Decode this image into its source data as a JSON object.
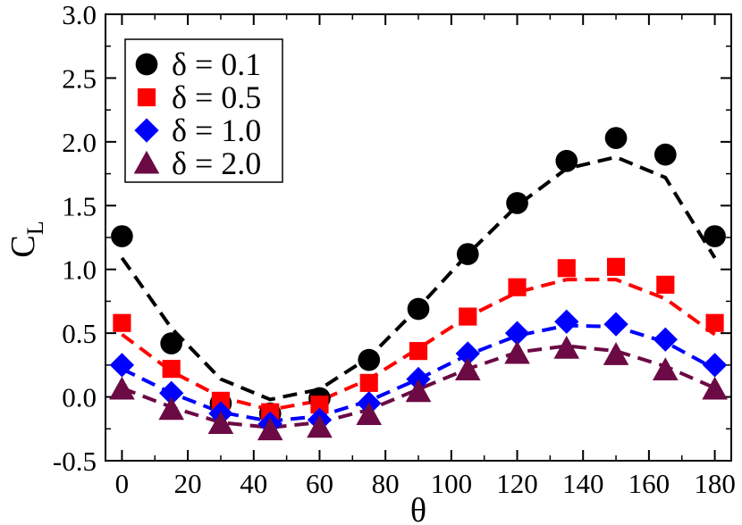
{
  "chart_data": {
    "type": "scatter",
    "xlabel": "θ",
    "ylabel_main": "C",
    "ylabel_sub": "L",
    "xlim": [
      -5,
      185
    ],
    "ylim": [
      -0.5,
      3.0
    ],
    "xticks": [
      0,
      20,
      40,
      60,
      80,
      100,
      120,
      140,
      160,
      180
    ],
    "yticks": [
      -0.5,
      0.0,
      0.5,
      1.0,
      1.5,
      2.0,
      2.5,
      3.0
    ],
    "xtick_labels": [
      "0",
      "20",
      "40",
      "60",
      "80",
      "100",
      "120",
      "140",
      "160",
      "180"
    ],
    "ytick_labels": [
      "-0.5",
      "0.0",
      "0.5",
      "1.0",
      "1.5",
      "2.0",
      "2.5",
      "3.0"
    ],
    "legend_position": "top-left",
    "x": [
      0,
      15,
      30,
      45,
      60,
      75,
      90,
      105,
      120,
      135,
      150,
      165,
      180
    ],
    "series": [
      {
        "name": "δ = 0.1",
        "color": "#000000",
        "marker": "circle",
        "values": [
          1.26,
          0.42,
          -0.05,
          -0.13,
          -0.01,
          0.29,
          0.69,
          1.12,
          1.52,
          1.85,
          2.03,
          1.9,
          1.26
        ],
        "fit": [
          1.09,
          0.54,
          0.14,
          -0.02,
          0.06,
          0.31,
          0.7,
          1.12,
          1.5,
          1.79,
          1.88,
          1.72,
          1.09
        ]
      },
      {
        "name": "δ = 0.5",
        "color": "#ff0000",
        "marker": "square",
        "values": [
          0.58,
          0.22,
          -0.03,
          -0.12,
          -0.06,
          0.11,
          0.36,
          0.63,
          0.86,
          1.01,
          1.02,
          0.88,
          0.58
        ],
        "fit": [
          0.49,
          0.2,
          0.0,
          -0.1,
          -0.03,
          0.14,
          0.38,
          0.63,
          0.82,
          0.92,
          0.92,
          0.77,
          0.49
        ]
      },
      {
        "name": "δ = 1.0",
        "color": "#0000ff",
        "marker": "diamond",
        "values": [
          0.25,
          0.03,
          -0.13,
          -0.21,
          -0.18,
          -0.05,
          0.14,
          0.34,
          0.5,
          0.59,
          0.57,
          0.45,
          0.25
        ],
        "fit": [
          0.22,
          0.03,
          -0.12,
          -0.19,
          -0.15,
          -0.03,
          0.14,
          0.33,
          0.48,
          0.56,
          0.55,
          0.43,
          0.22
        ]
      },
      {
        "name": "δ = 2.0",
        "color": "#6b0a44",
        "marker": "triangle",
        "values": [
          0.06,
          -0.1,
          -0.21,
          -0.26,
          -0.24,
          -0.14,
          0.04,
          0.21,
          0.34,
          0.38,
          0.33,
          0.21,
          0.06
        ],
        "fit": [
          0.07,
          -0.08,
          -0.2,
          -0.24,
          -0.2,
          -0.1,
          0.06,
          0.22,
          0.35,
          0.4,
          0.36,
          0.24,
          0.07
        ]
      }
    ]
  }
}
